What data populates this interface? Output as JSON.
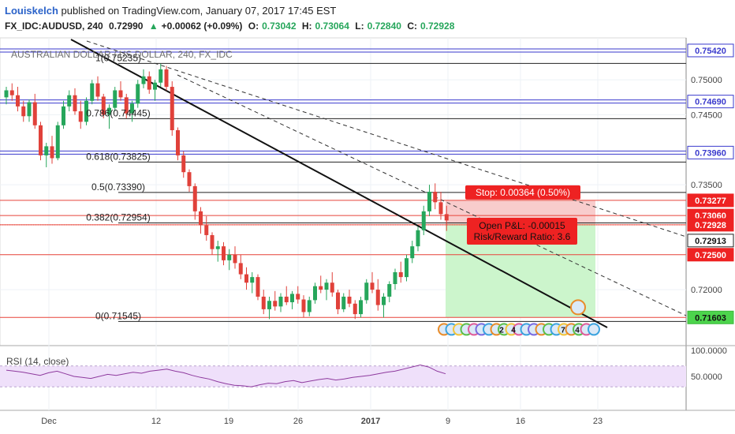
{
  "header": {
    "author": "Louiskelch",
    "published": "published on TradingView.com, January 07, 2017 17:45 EST",
    "symbol": "FX_IDC:AUDUSD, 240",
    "last": "0.72990",
    "change_arrow": "▲",
    "change": "+0.00062 (+0.09%)",
    "o_label": "O:",
    "o": "0.73042",
    "h_label": "H:",
    "h": "0.73064",
    "l_label": "L:",
    "l": "0.72840",
    "c_label": "C:",
    "c": "0.72928"
  },
  "watermark": "AUSTRALIAN DOLLAR / US DOLLAR, 240, FX_IDC",
  "colors": {
    "up": "#26a65b",
    "down": "#e0413a",
    "blue_line": "#3a3acd",
    "red_line": "#e8443a",
    "target_zone": "#ccf5cc",
    "stop_zone": "#f8cccc",
    "rsi_band": "#efe0fa",
    "rsi_line": "#8e3a9e",
    "label_red": "#ee2222"
  },
  "chart_data": {
    "type": "candlestick",
    "price_range": [
      0.712,
      0.756
    ],
    "price_ticks": [
      "0.75000",
      "0.74500",
      "0.73500",
      "0.72500",
      "0.72000"
    ],
    "time_labels": [
      "Dec",
      "12",
      "19",
      "26",
      "2017",
      "9",
      "16",
      "23"
    ],
    "fib_levels": [
      {
        "label": "1(0.75235)",
        "value": 0.75235
      },
      {
        "label": "0.786(0.74445)",
        "value": 0.74445
      },
      {
        "label": "0.618(0.73825)",
        "value": 0.73825
      },
      {
        "label": "0.5(0.73390)",
        "value": 0.7339
      },
      {
        "label": "0.382(0.72954)",
        "value": 0.72954
      },
      {
        "label": "0(0.71545)",
        "value": 0.71545
      }
    ],
    "horizontal_levels": [
      {
        "price_label": "0.75420",
        "value": 0.7542,
        "style": "blue"
      },
      {
        "price_label": "0.74690",
        "value": 0.7469,
        "style": "blue"
      },
      {
        "price_label": "0.73960",
        "value": 0.7396,
        "style": "blue"
      },
      {
        "price_label": "0.73277",
        "value": 0.73277,
        "style": "red"
      },
      {
        "price_label": "0.73060",
        "value": 0.7306,
        "style": "red"
      },
      {
        "price_label": "0.72928",
        "value": 0.72928,
        "style": "red"
      },
      {
        "price_label": "0.72913",
        "value": 0.72913,
        "style": "dark"
      },
      {
        "price_label": "0.72500",
        "value": 0.725,
        "style": "red"
      },
      {
        "price_label": "0.71603",
        "value": 0.71603,
        "style": "green"
      }
    ],
    "position": {
      "stop_text": "Stop: 0.00364 (0.50%)",
      "pnl_text": "Open P&L: -0.00015",
      "rr_text": "Risk/Reward Ratio: 3.6"
    },
    "event_badges": [
      "2",
      "4",
      "7",
      "4"
    ],
    "rsi": {
      "label": "RSI (14, close)",
      "ticks": [
        "100.0000",
        "50.0000"
      ],
      "band": [
        30,
        70
      ],
      "values": [
        62,
        60,
        58,
        55,
        52,
        57,
        60,
        55,
        50,
        48,
        46,
        50,
        54,
        52,
        55,
        58,
        56,
        60,
        62,
        64,
        60,
        57,
        52,
        48,
        45,
        40,
        36,
        33,
        32,
        30,
        34,
        37,
        36,
        40,
        42,
        38,
        41,
        44,
        46,
        43,
        45,
        48,
        50,
        52,
        55,
        58,
        60,
        64,
        68,
        72,
        68,
        60,
        55
      ]
    },
    "candles": [
      [
        0.7475,
        0.749,
        0.7465,
        0.7485
      ],
      [
        0.7485,
        0.7495,
        0.747,
        0.7478
      ],
      [
        0.7478,
        0.749,
        0.7455,
        0.7462
      ],
      [
        0.7462,
        0.747,
        0.744,
        0.7448
      ],
      [
        0.7448,
        0.7472,
        0.744,
        0.7468
      ],
      [
        0.7468,
        0.748,
        0.743,
        0.7435
      ],
      [
        0.7435,
        0.744,
        0.7385,
        0.7392
      ],
      [
        0.7392,
        0.741,
        0.7375,
        0.7405
      ],
      [
        0.7405,
        0.742,
        0.738,
        0.7388
      ],
      [
        0.7388,
        0.744,
        0.7385,
        0.7435
      ],
      [
        0.7435,
        0.747,
        0.743,
        0.7462
      ],
      [
        0.7462,
        0.7485,
        0.7455,
        0.7478
      ],
      [
        0.7478,
        0.7488,
        0.745,
        0.7455
      ],
      [
        0.7455,
        0.747,
        0.743,
        0.744
      ],
      [
        0.744,
        0.7475,
        0.7435,
        0.747
      ],
      [
        0.747,
        0.75,
        0.7465,
        0.7495
      ],
      [
        0.7495,
        0.7505,
        0.747,
        0.7476
      ],
      [
        0.7476,
        0.748,
        0.7445,
        0.745
      ],
      [
        0.745,
        0.7465,
        0.743,
        0.746
      ],
      [
        0.746,
        0.749,
        0.7455,
        0.7485
      ],
      [
        0.7485,
        0.7498,
        0.747,
        0.7475
      ],
      [
        0.7475,
        0.748,
        0.7445,
        0.7452
      ],
      [
        0.7452,
        0.747,
        0.744,
        0.7466
      ],
      [
        0.7466,
        0.75,
        0.746,
        0.7494
      ],
      [
        0.7494,
        0.7515,
        0.7488,
        0.7505
      ],
      [
        0.7505,
        0.7512,
        0.748,
        0.7486
      ],
      [
        0.7486,
        0.75,
        0.747,
        0.7496
      ],
      [
        0.7496,
        0.7523,
        0.749,
        0.7515
      ],
      [
        0.7515,
        0.752,
        0.7485,
        0.749
      ],
      [
        0.749,
        0.7498,
        0.742,
        0.7428
      ],
      [
        0.7428,
        0.7432,
        0.7385,
        0.7392
      ],
      [
        0.7392,
        0.7398,
        0.736,
        0.7368
      ],
      [
        0.7368,
        0.7372,
        0.734,
        0.7348
      ],
      [
        0.7348,
        0.7352,
        0.73,
        0.7312
      ],
      [
        0.7312,
        0.7318,
        0.728,
        0.7292
      ],
      [
        0.7292,
        0.7305,
        0.727,
        0.7278
      ],
      [
        0.7278,
        0.7282,
        0.725,
        0.7258
      ],
      [
        0.7258,
        0.727,
        0.724,
        0.7262
      ],
      [
        0.7262,
        0.7268,
        0.7235,
        0.7242
      ],
      [
        0.7242,
        0.7258,
        0.7228,
        0.725
      ],
      [
        0.725,
        0.7262,
        0.723,
        0.7238
      ],
      [
        0.7238,
        0.725,
        0.7215,
        0.7222
      ],
      [
        0.7222,
        0.7232,
        0.72,
        0.721
      ],
      [
        0.721,
        0.7225,
        0.7195,
        0.7218
      ],
      [
        0.7218,
        0.7222,
        0.7185,
        0.719
      ],
      [
        0.719,
        0.72,
        0.7165,
        0.7172
      ],
      [
        0.7172,
        0.719,
        0.7158,
        0.7184
      ],
      [
        0.7184,
        0.7198,
        0.717,
        0.7176
      ],
      [
        0.7176,
        0.7195,
        0.7168,
        0.719
      ],
      [
        0.719,
        0.7205,
        0.7178,
        0.7182
      ],
      [
        0.7182,
        0.7198,
        0.7172,
        0.7194
      ],
      [
        0.7194,
        0.7205,
        0.718,
        0.7186
      ],
      [
        0.7186,
        0.7192,
        0.716,
        0.7168
      ],
      [
        0.7168,
        0.719,
        0.7162,
        0.7185
      ],
      [
        0.7185,
        0.721,
        0.718,
        0.7205
      ],
      [
        0.7205,
        0.722,
        0.7195,
        0.72
      ],
      [
        0.72,
        0.7215,
        0.7185,
        0.721
      ],
      [
        0.721,
        0.7225,
        0.719,
        0.7196
      ],
      [
        0.7196,
        0.72,
        0.7165,
        0.7172
      ],
      [
        0.7172,
        0.7195,
        0.7168,
        0.719
      ],
      [
        0.719,
        0.72,
        0.7175,
        0.718
      ],
      [
        0.718,
        0.7185,
        0.7158,
        0.7165
      ],
      [
        0.7165,
        0.719,
        0.716,
        0.7185
      ],
      [
        0.7185,
        0.7215,
        0.718,
        0.721
      ],
      [
        0.721,
        0.7225,
        0.7195,
        0.72
      ],
      [
        0.72,
        0.7215,
        0.717,
        0.7178
      ],
      [
        0.7178,
        0.7195,
        0.716,
        0.719
      ],
      [
        0.719,
        0.7212,
        0.7182,
        0.7208
      ],
      [
        0.7208,
        0.723,
        0.72,
        0.7225
      ],
      [
        0.7225,
        0.724,
        0.721,
        0.7218
      ],
      [
        0.7218,
        0.725,
        0.7212,
        0.7245
      ],
      [
        0.7245,
        0.727,
        0.7238,
        0.7262
      ],
      [
        0.7262,
        0.729,
        0.7255,
        0.7285
      ],
      [
        0.7285,
        0.732,
        0.7278,
        0.7312
      ],
      [
        0.7312,
        0.735,
        0.7305,
        0.734
      ],
      [
        0.734,
        0.7352,
        0.7315,
        0.7325
      ],
      [
        0.7325,
        0.734,
        0.73,
        0.7308
      ],
      [
        0.7308,
        0.732,
        0.7284,
        0.7299
      ]
    ]
  }
}
